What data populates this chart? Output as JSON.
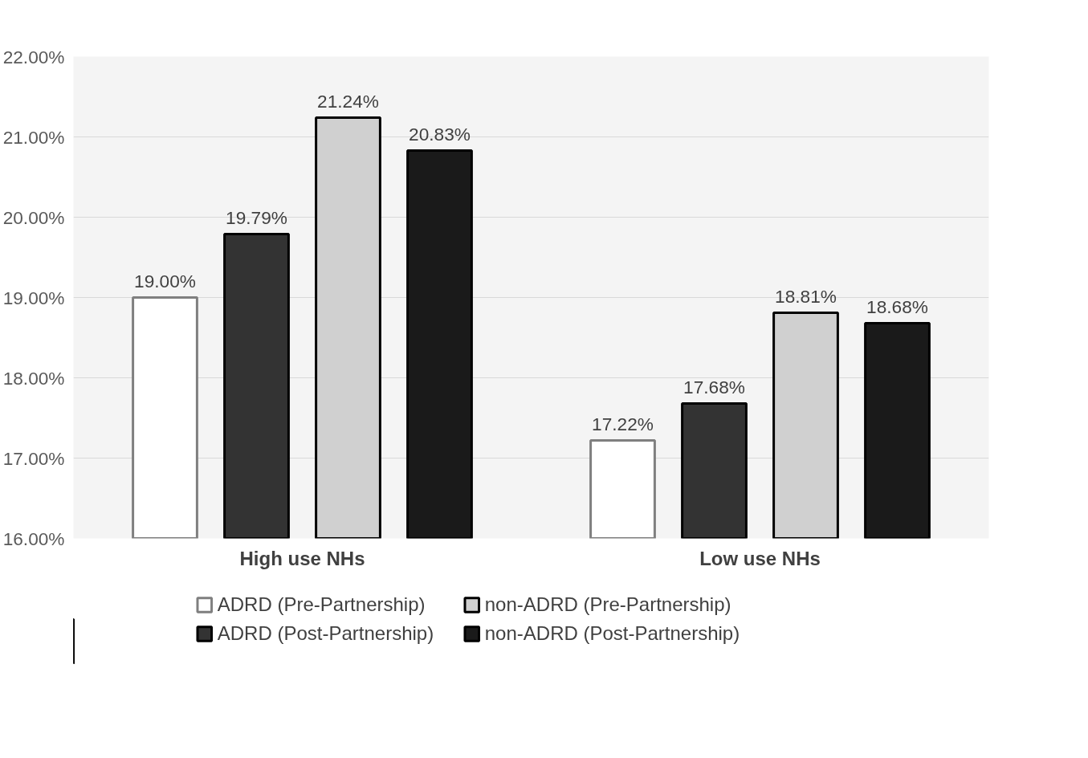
{
  "chart_data": {
    "type": "bar",
    "categories": [
      "High use NHs",
      "Low use NHs"
    ],
    "series": [
      {
        "name": "ADRD (Pre-Partnership)",
        "color": "#ffffff",
        "values": [
          19.0,
          17.22
        ],
        "value_labels": [
          "19.00%",
          "17.22%"
        ]
      },
      {
        "name": "ADRD (Post-Partnership)",
        "color": "#333333",
        "values": [
          19.79,
          17.68
        ],
        "value_labels": [
          "19.79%",
          "17.68%"
        ]
      },
      {
        "name": "non-ADRD (Pre-Partnership)",
        "color": "#d0d0d0",
        "values": [
          21.24,
          18.81
        ],
        "value_labels": [
          "21.24%",
          "18.81%"
        ]
      },
      {
        "name": "non-ADRD (Post-Partnership)",
        "color": "#1a1a1a",
        "values": [
          20.83,
          18.68
        ],
        "value_labels": [
          "20.83%",
          "18.68%"
        ]
      }
    ],
    "ylim": [
      16,
      22
    ],
    "yticks": [
      {
        "value": 16,
        "label": "16.00%"
      },
      {
        "value": 17,
        "label": "17.00%"
      },
      {
        "value": 18,
        "label": "18.00%"
      },
      {
        "value": 19,
        "label": "19.00%"
      },
      {
        "value": 20,
        "label": "20.00%"
      },
      {
        "value": 21,
        "label": "21.00%"
      },
      {
        "value": 22,
        "label": "22.00%"
      }
    ],
    "grid": "y",
    "legend": "bottom"
  }
}
